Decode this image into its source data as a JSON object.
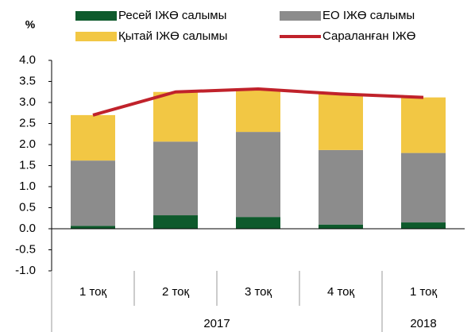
{
  "chart_data": {
    "type": "stacked-bar-line",
    "y_label": "%",
    "categories": [
      "1 тоқ",
      "2 тоқ",
      "3 тоқ",
      "4 тоқ",
      "1 тоқ"
    ],
    "category_groups": [
      "2017",
      "2017",
      "2017",
      "2017",
      "2018"
    ],
    "series": [
      {
        "name": "Ресей ІЖӨ салымы",
        "color": "#0e5a2c",
        "kind": "bar",
        "values": [
          0.07,
          0.32,
          0.28,
          0.1,
          0.15
        ]
      },
      {
        "name": "ЕО ІЖӨ салымы",
        "color": "#8c8c8c",
        "kind": "bar",
        "values": [
          1.55,
          1.75,
          2.02,
          1.77,
          1.65
        ]
      },
      {
        "name": "Қытай ІЖӨ салымы",
        "color": "#f2c744",
        "kind": "bar",
        "values": [
          1.08,
          1.18,
          1.0,
          1.33,
          1.32
        ]
      },
      {
        "name": "Сараланған ІЖӨ",
        "color": "#c0222b",
        "kind": "line",
        "values": [
          2.7,
          3.25,
          3.32,
          3.2,
          3.12
        ]
      }
    ],
    "ylim": [
      -1,
      4
    ],
    "yticks": [
      {
        "value": 4,
        "label": "4.0"
      },
      3.5,
      {
        "value": 3,
        "label": "3.0"
      },
      2.5,
      {
        "value": 2,
        "label": "2.0"
      },
      1.5,
      {
        "value": 1,
        "label": "1.0"
      },
      0.5,
      {
        "value": 0,
        "label": "0.0"
      },
      -0.5,
      {
        "value": -1,
        "label": "-1.0"
      }
    ],
    "grid": false
  }
}
